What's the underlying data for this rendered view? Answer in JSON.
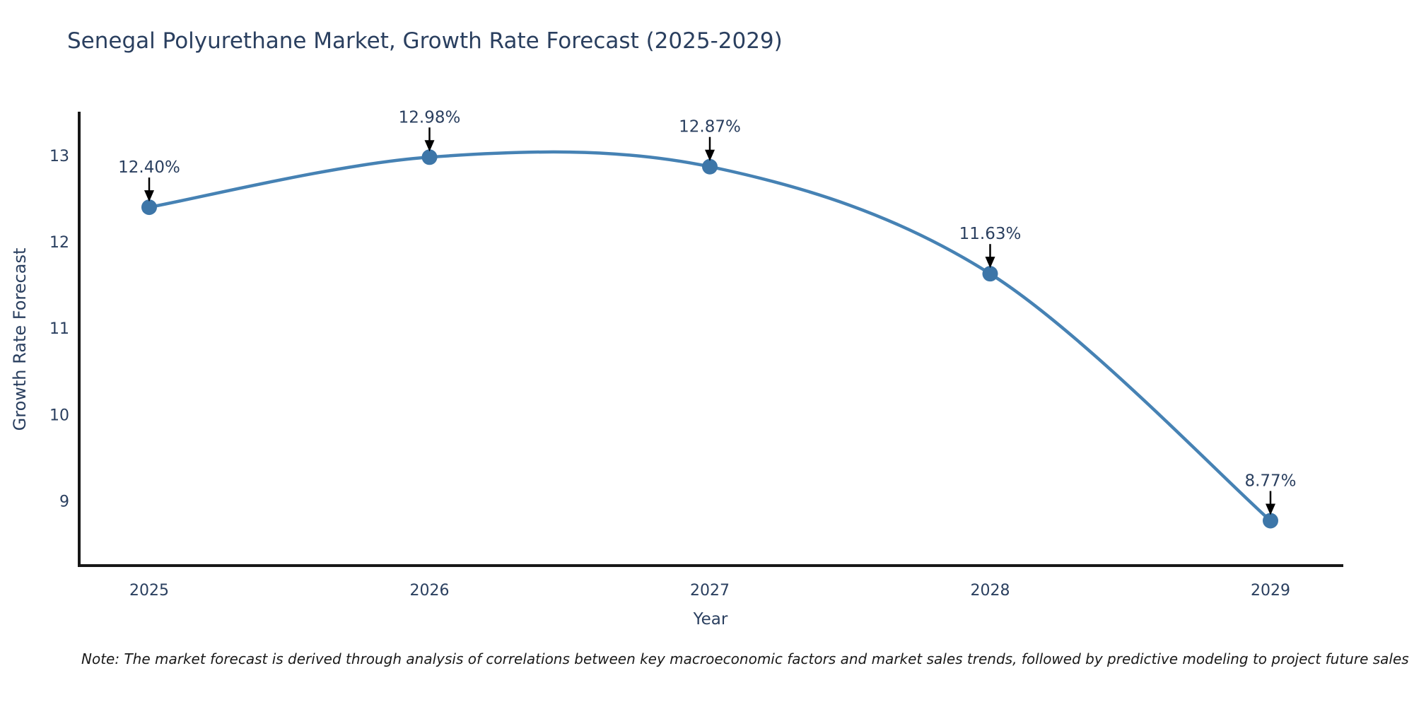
{
  "title": "Senegal Polyurethane Market, Growth Rate Forecast (2025-2029)",
  "note": "Note: The market forecast is derived through analysis of correlations between key macroeconomic factors and market sales trends, followed by predictive modeling to project future sales",
  "chart_data": {
    "type": "line",
    "title": "Senegal Polyurethane Market, Growth Rate Forecast (2025-2029)",
    "xlabel": "Year",
    "ylabel": "Growth Rate Forecast",
    "categories": [
      "2025",
      "2026",
      "2027",
      "2028",
      "2029"
    ],
    "series": [
      {
        "name": "Growth Rate Forecast",
        "values": [
          12.4,
          12.98,
          12.87,
          11.63,
          8.77
        ],
        "labels": [
          "12.40%",
          "12.98%",
          "12.87%",
          "11.63%",
          "8.77%"
        ]
      }
    ],
    "yticks": [
      9,
      10,
      11,
      12,
      13
    ],
    "ylim": [
      8.25,
      13.49
    ],
    "line_shape": "spline",
    "grid": false,
    "legend_position": "none",
    "colors": {
      "line": "#4682b4",
      "marker": "#3d76a8",
      "arrow": "#000000",
      "text": "#2a3f5f",
      "axis_line": "#171717",
      "note_text": "#1a1a1a",
      "background": "#ffffff"
    }
  }
}
